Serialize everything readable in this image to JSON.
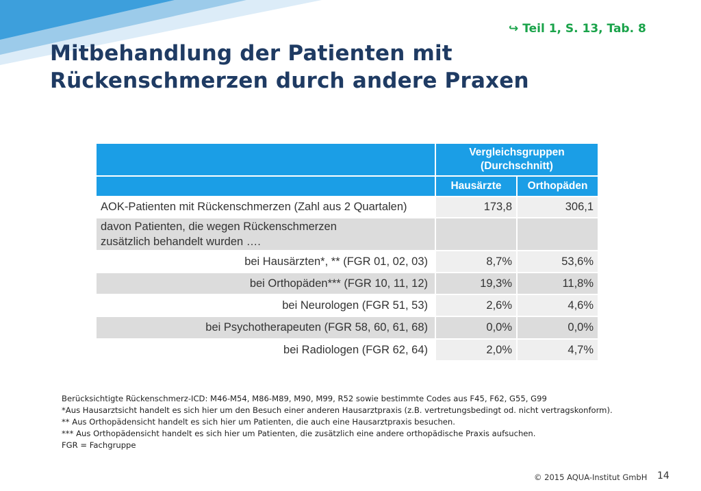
{
  "slide": {
    "reference": "Teil  1, S. 13, Tab. 8",
    "reference_icon": "arrow-return-icon",
    "title_line1": "Mitbehandlung der Patienten mit",
    "title_line2": "Rückenschmerzen durch andere Praxen"
  },
  "table": {
    "group_header": "Vergleichsgruppen (Durchschnitt)",
    "col_hausaerzte": "Hausärzte",
    "col_orthopaeden": "Orthopäden",
    "rows": [
      {
        "label": "AOK-Patienten mit Rückenschmerzen (Zahl aus 2 Quartalen)",
        "hausaerzte": "173,8",
        "orthopaeden": "306,1"
      },
      {
        "label": "davon Patienten, die wegen Rückenschmerzen zusätzlich behandelt wurden ….",
        "hausaerzte": "",
        "orthopaeden": ""
      },
      {
        "label": "bei Hausärzten*, ** (FGR 01, 02, 03)",
        "hausaerzte": "8,7%",
        "orthopaeden": "53,6%"
      },
      {
        "label": "bei Orthopäden*** (FGR 10, 11, 12)",
        "hausaerzte": "19,3%",
        "orthopaeden": "11,8%"
      },
      {
        "label": "bei Neurologen (FGR 51, 53)",
        "hausaerzte": "2,6%",
        "orthopaeden": "4,6%"
      },
      {
        "label": "bei Psychotherapeuten (FGR 58, 60, 61, 68)",
        "hausaerzte": "0,0%",
        "orthopaeden": "0,0%"
      },
      {
        "label": "bei Radiologen (FGR 62, 64)",
        "hausaerzte": "2,0%",
        "orthopaeden": "4,7%"
      }
    ]
  },
  "notes": [
    "Berücksichtigte Rückenschmerz-ICD: M46-M54, M86-M89, M90, M99, R52 sowie bestimmte Codes aus F45, F62, G55, G99",
    "*Aus Hausarztsicht handelt es sich hier um den Besuch einer anderen Hausarztpraxis (z.B. vertretungsbedingt od. nicht vertragskonform).",
    "** Aus Orthopädensicht handelt es sich hier um Patienten, die auch eine Hausarztpraxis besuchen.",
    "*** Aus Orthopädensicht handelt es sich hier um Patienten, die zusätzlich eine andere orthopädische Praxis aufsuchen.",
    "FGR = Fachgruppe"
  ],
  "footer": {
    "copyright": "© 2015 AQUA-Institut GmbH",
    "page_number": "14"
  },
  "colors": {
    "accent": "#1b9ee6",
    "title": "#1f3b63",
    "reference": "#1aa34a"
  }
}
